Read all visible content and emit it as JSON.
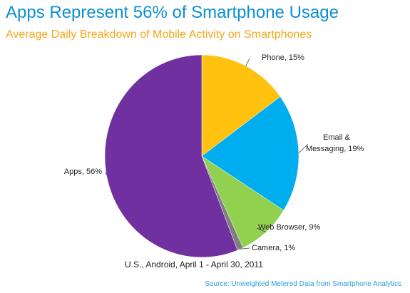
{
  "title": "Apps Represent 56% of Smartphone Usage",
  "subtitle": "Average Daily Breakdown of Mobile Activity on Smartphones",
  "caption": "U.S., Android, April 1 - April 30, 2011",
  "source": "Source: Unweighted Metered Data from Smartphone Analytics",
  "chart_data": {
    "type": "pie",
    "title": "Apps Represent 56% of Smartphone Usage",
    "subtitle": "Average Daily Breakdown of Mobile Activity on Smartphones",
    "slices": [
      {
        "label": "Phone, 15%",
        "value": 15,
        "color": "#ffc20e"
      },
      {
        "label": "Email & Messaging, 19%",
        "value": 19,
        "color": "#00aeef"
      },
      {
        "label": "Web Browser, 9%",
        "value": 9,
        "color": "#92d050"
      },
      {
        "label": "Camera, 1%",
        "value": 1,
        "color": "#7f7f7f"
      },
      {
        "label": "Apps, 56%",
        "value": 56,
        "color": "#7030a0"
      }
    ],
    "legend": "none",
    "label_style": "outside with leader lines"
  }
}
